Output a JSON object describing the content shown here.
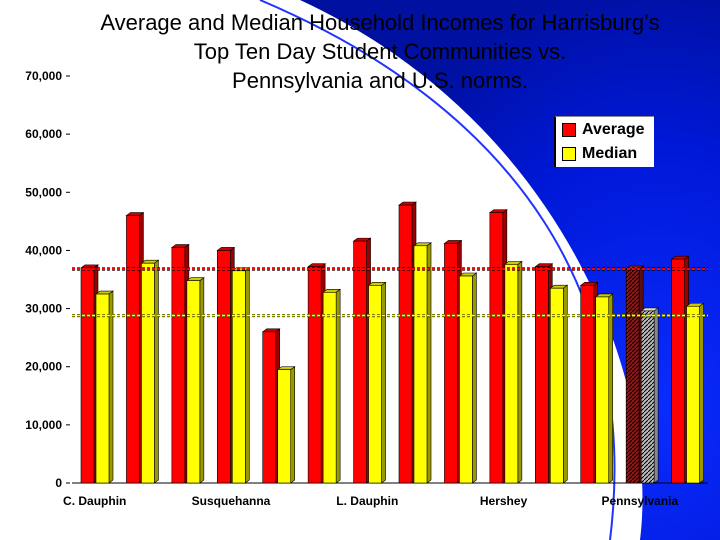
{
  "chart_data": {
    "type": "bar",
    "title_lines": [
      "Average and Median Household Incomes for Harrisburg’s",
      "Top Ten Day Student Communities vs.",
      "Pennsylvania and U.S. norms."
    ],
    "y_tick_labels": [
      "0",
      "10,000",
      "20,000",
      "30,000",
      "40,000",
      "50,000",
      "60,000",
      "70,000"
    ],
    "ylim": [
      0,
      70000
    ],
    "x_tick_labels": [
      "C. Dauphin",
      "Susquehanna",
      "L. Dauphin",
      "Hershey",
      "Pennsylvania"
    ],
    "groups": 14,
    "series": [
      {
        "name": "Average",
        "color": "#ff0000",
        "values": [
          37000,
          46000,
          40500,
          40000,
          26000,
          37200,
          41600,
          47800,
          41200,
          46500,
          37200,
          34000,
          36800,
          38500
        ]
      },
      {
        "name": "Median",
        "color": "#ffff00",
        "values": [
          32500,
          37800,
          34800,
          36500,
          19500,
          32800,
          34000,
          40800,
          35600,
          37600,
          33500,
          32000,
          29600,
          30400
        ]
      }
    ],
    "highlighted_group": 12,
    "reference_lines": [
      {
        "series": "Average",
        "value": 36800,
        "color": "#ff0000",
        "style": "dashed"
      },
      {
        "series": "Median",
        "value": 28800,
        "color": "#ffff00",
        "style": "dashed"
      }
    ],
    "grid": false,
    "legend_position": "top-right"
  }
}
